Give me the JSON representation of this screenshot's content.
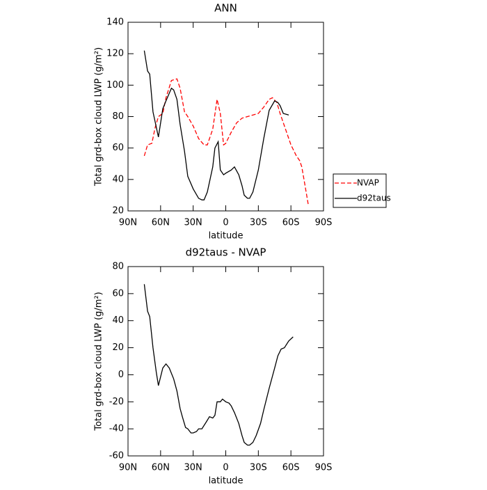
{
  "chart_data": [
    {
      "type": "line",
      "title": "ANN",
      "xlabel": "latitude",
      "ylabel": "Total grd-box cloud LWP (g/m²)",
      "xlim": [
        90,
        -90
      ],
      "xticks": [
        {
          "value": 90,
          "label": "90N"
        },
        {
          "value": 60,
          "label": "60N"
        },
        {
          "value": 30,
          "label": "30N"
        },
        0,
        {
          "value": -30,
          "label": "30S"
        },
        {
          "value": -60,
          "label": "60S"
        },
        {
          "value": -90,
          "label": "90S"
        }
      ],
      "ylim": [
        20,
        140
      ],
      "yticks": [
        20,
        40,
        60,
        80,
        100,
        120,
        140
      ],
      "legend": "right",
      "series": [
        {
          "name": "NVAP",
          "color": "#ff0000",
          "line_style": "dashed",
          "x": [
            75,
            72,
            68,
            65,
            62,
            58,
            55,
            50,
            45,
            42,
            38,
            35,
            30,
            25,
            20,
            17,
            12,
            8,
            5,
            2,
            0,
            -5,
            -10,
            -15,
            -20,
            -25,
            -30,
            -35,
            -40,
            -43,
            -47,
            -50,
            -55,
            -60,
            -65,
            -68,
            -70,
            -73,
            -76
          ],
          "values": [
            55,
            62,
            63,
            73,
            80,
            82,
            92,
            103,
            104,
            98,
            83,
            80,
            74,
            66,
            62,
            62,
            72,
            91,
            82,
            62,
            63,
            70,
            76,
            79,
            80,
            81,
            82,
            86,
            91,
            92,
            89,
            82,
            72,
            62,
            55,
            52,
            48,
            36,
            24
          ]
        },
        {
          "name": "d92taus",
          "color": "#000000",
          "line_style": "solid",
          "x": [
            75,
            72,
            70,
            67,
            62,
            58,
            55,
            50,
            48,
            45,
            42,
            38,
            35,
            30,
            25,
            22,
            20,
            17,
            12,
            10,
            7,
            5,
            2,
            0,
            -5,
            -8,
            -12,
            -15,
            -17,
            -20,
            -22,
            -25,
            -30,
            -35,
            -40,
            -45,
            -48,
            -50,
            -53,
            -58
          ],
          "values": [
            122,
            109,
            107,
            83,
            67,
            85,
            90,
            98,
            97,
            91,
            75,
            58,
            42,
            34,
            28,
            27,
            27,
            32,
            48,
            60,
            64,
            46,
            43,
            44,
            46,
            48,
            43,
            36,
            30,
            28,
            28,
            32,
            46,
            66,
            84,
            90,
            89,
            87,
            82,
            81
          ]
        }
      ]
    },
    {
      "type": "line",
      "title": "d92taus - NVAP",
      "xlabel": "latitude",
      "ylabel": "Total grd-box cloud LWP (g/m²)",
      "xlim": [
        90,
        -90
      ],
      "xticks": [
        {
          "value": 90,
          "label": "90N"
        },
        {
          "value": 60,
          "label": "60N"
        },
        {
          "value": 30,
          "label": "30N"
        },
        0,
        {
          "value": -30,
          "label": "30S"
        },
        {
          "value": -60,
          "label": "60S"
        },
        {
          "value": -90,
          "label": "90S"
        }
      ],
      "ylim": [
        -60,
        80
      ],
      "yticks": [
        -60,
        -40,
        -20,
        0,
        20,
        40,
        60,
        80
      ],
      "series": [
        {
          "color": "#000000",
          "line_style": "solid",
          "x": [
            75,
            72,
            70,
            67,
            64,
            62,
            58,
            55,
            52,
            48,
            45,
            42,
            40,
            37,
            35,
            32,
            30,
            27,
            25,
            22,
            18,
            15,
            12,
            10,
            8,
            5,
            3,
            0,
            -3,
            -5,
            -8,
            -12,
            -15,
            -17,
            -20,
            -22,
            -25,
            -28,
            -32,
            -35,
            -40,
            -45,
            -48,
            -51,
            -54,
            -58,
            -62
          ],
          "values": [
            67,
            47,
            43,
            20,
            2,
            -8,
            5,
            8,
            5,
            -3,
            -12,
            -25,
            -31,
            -39,
            -40,
            -43,
            -43,
            -42,
            -40,
            -40,
            -35,
            -31,
            -32,
            -30,
            -20,
            -20,
            -18,
            -20,
            -21,
            -23,
            -28,
            -36,
            -45,
            -50,
            -52,
            -52,
            -50,
            -45,
            -36,
            -26,
            -10,
            5,
            14,
            19,
            20,
            25,
            28
          ]
        }
      ]
    }
  ]
}
